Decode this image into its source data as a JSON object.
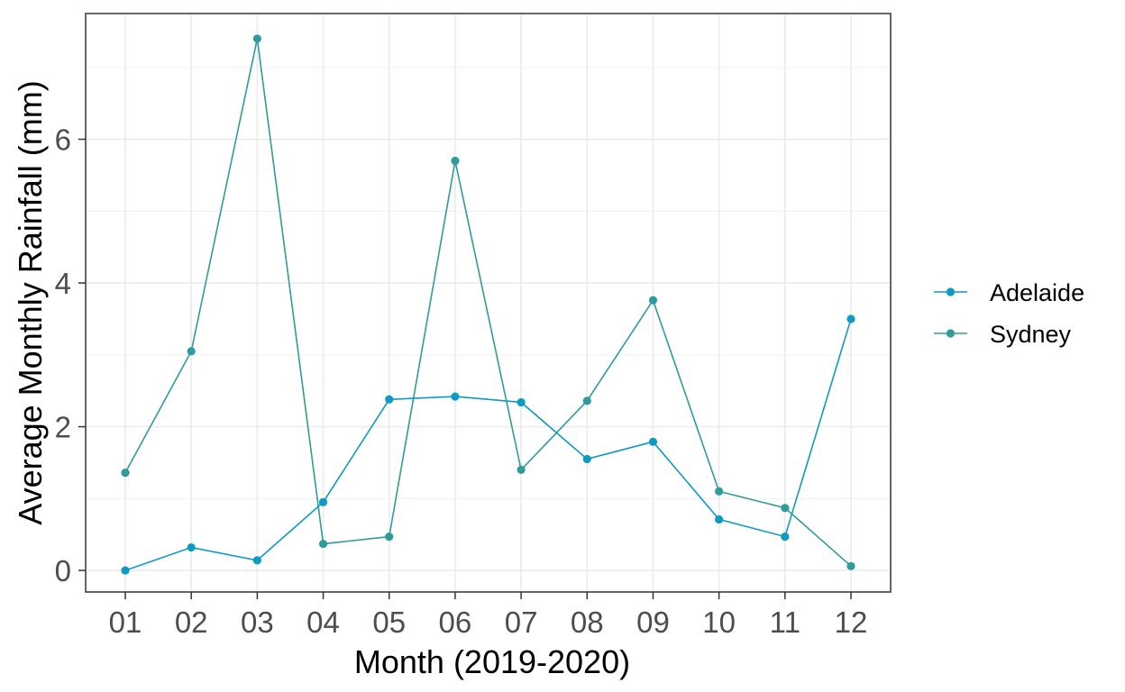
{
  "chart_data": {
    "type": "line",
    "xlabel": "Month (2019-2020)",
    "ylabel": "Average Monthly Rainfall (mm)",
    "categories": [
      "01",
      "02",
      "03",
      "04",
      "05",
      "06",
      "07",
      "08",
      "09",
      "10",
      "11",
      "12"
    ],
    "ylim": [
      -0.3,
      7.75
    ],
    "yticks": [
      0,
      2,
      4,
      6
    ],
    "grid": true,
    "legend_position": "right",
    "series": [
      {
        "name": "Adelaide",
        "color": "#0e9ac2",
        "values": [
          0.0,
          0.32,
          0.14,
          0.95,
          2.38,
          2.42,
          2.34,
          1.55,
          1.79,
          0.71,
          0.47,
          3.5
        ]
      },
      {
        "name": "Sydney",
        "color": "#2e9c9a",
        "values": [
          1.36,
          3.05,
          7.4,
          0.37,
          0.47,
          5.7,
          1.4,
          2.36,
          3.76,
          1.1,
          0.87,
          0.06
        ]
      }
    ]
  }
}
